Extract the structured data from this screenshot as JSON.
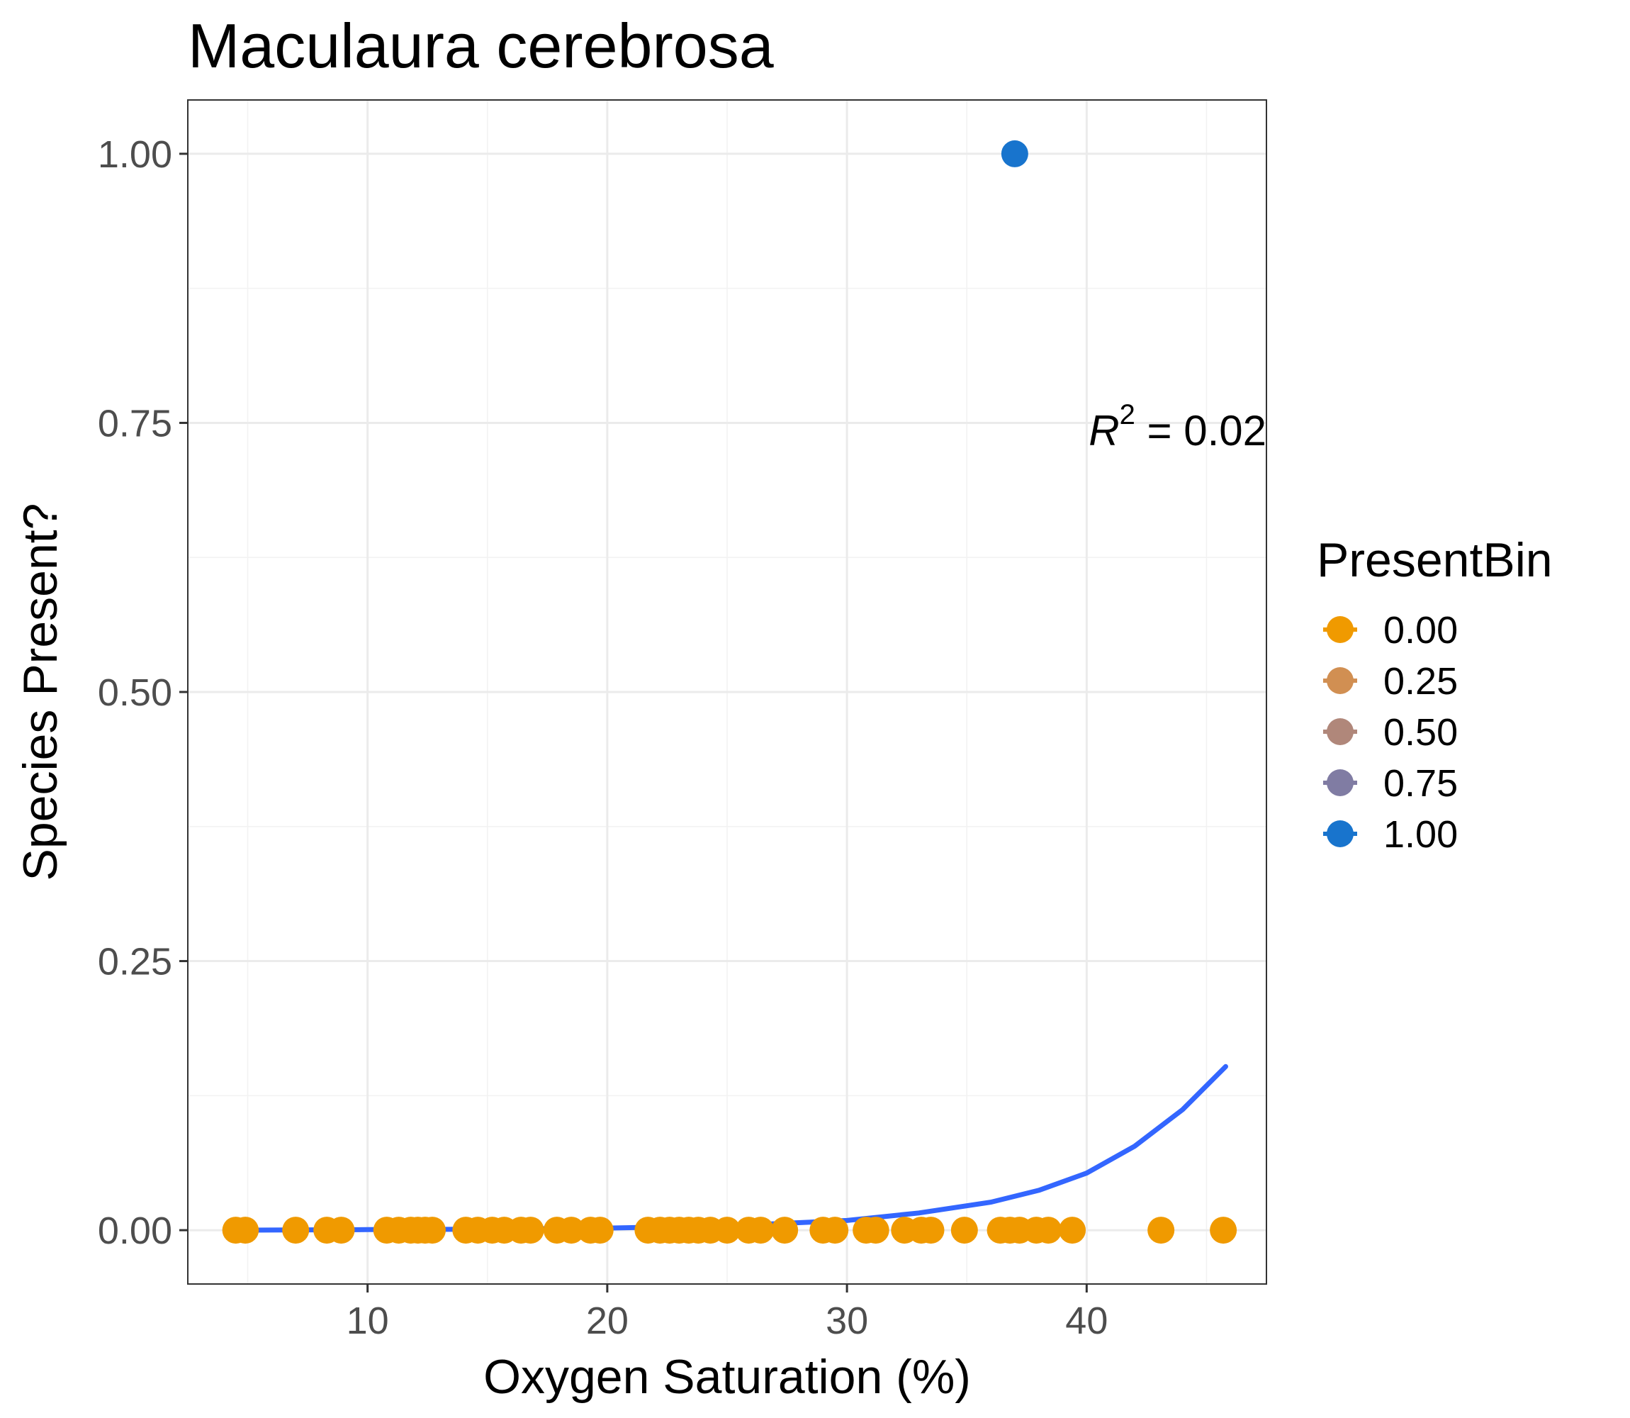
{
  "chart_data": {
    "type": "scatter",
    "title": "Maculaura cerebrosa",
    "xlabel": "Oxygen Saturation (%)",
    "ylabel": "Species Present?",
    "xlim": [
      2.5,
      47.5
    ],
    "ylim": [
      -0.05,
      1.05
    ],
    "x_ticks": [
      10,
      20,
      30,
      40
    ],
    "y_ticks": [
      0.0,
      0.25,
      0.5,
      0.75,
      1.0
    ],
    "x_tick_labels": [
      "10",
      "20",
      "30",
      "40"
    ],
    "y_tick_labels": [
      "0.00",
      "0.25",
      "0.50",
      "0.75",
      "1.00"
    ],
    "grid": true,
    "legend": {
      "title": "PresentBin",
      "position": "right",
      "entries": [
        {
          "label": "0.00",
          "color": "#F09A00"
        },
        {
          "label": "0.25",
          "color": "#D18F52"
        },
        {
          "label": "0.50",
          "color": "#B0877A"
        },
        {
          "label": "0.75",
          "color": "#807CA3"
        },
        {
          "label": "1.00",
          "color": "#1874CD"
        }
      ]
    },
    "annotation": {
      "symbol": "R",
      "superscript": "2",
      "text": " = 0.02"
    },
    "points_absent": {
      "y": 0,
      "color": "#F09A00",
      "x": [
        4.5,
        4.9,
        7.0,
        8.3,
        8.9,
        10.8,
        11.3,
        11.8,
        12.1,
        12.4,
        12.7,
        14.1,
        14.6,
        15.2,
        15.7,
        16.4,
        16.8,
        17.9,
        18.5,
        19.3,
        19.7,
        21.7,
        22.2,
        22.6,
        23.0,
        23.4,
        23.8,
        24.3,
        25.0,
        25.9,
        26.4,
        27.4,
        29.0,
        29.5,
        30.8,
        31.2,
        32.4,
        33.1,
        33.5,
        34.9,
        36.4,
        36.8,
        37.2,
        37.9,
        38.4,
        39.4,
        43.1,
        45.7
      ]
    },
    "points_present": {
      "y": 1,
      "color": "#1874CD",
      "x": [
        37.0
      ]
    },
    "fit_curve": {
      "color": "#3366FF",
      "x": [
        4.5,
        10,
        15,
        20,
        25,
        30,
        33,
        36,
        38,
        40,
        42,
        44,
        45.8
      ],
      "y": [
        0.0,
        0.0005,
        0.001,
        0.002,
        0.004,
        0.009,
        0.016,
        0.026,
        0.037,
        0.053,
        0.078,
        0.112,
        0.152
      ]
    }
  }
}
